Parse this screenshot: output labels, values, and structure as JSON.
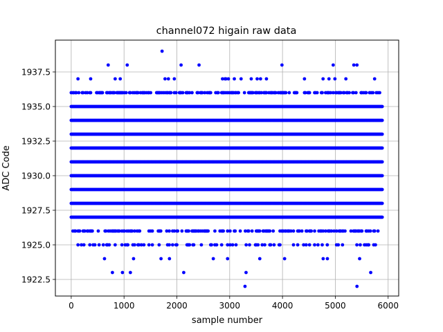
{
  "chart_data": {
    "type": "scatter",
    "title": "channel072 higain raw data",
    "xlabel": "sample number",
    "ylabel": "ADC Code",
    "xlim": [
      -300,
      6200
    ],
    "ylim": [
      1921.3,
      1939.8
    ],
    "x_ticks": [
      0,
      1000,
      2000,
      3000,
      4000,
      5000,
      6000
    ],
    "x_tick_labels": [
      "0",
      "1000",
      "2000",
      "3000",
      "4000",
      "5000",
      "6000"
    ],
    "y_ticks": [
      1922.5,
      1925.0,
      1927.5,
      1930.0,
      1932.5,
      1935.0,
      1937.5
    ],
    "y_tick_labels": [
      "1922.5",
      "1925.0",
      "1927.5",
      "1930.0",
      "1932.5",
      "1935.0",
      "1937.5"
    ],
    "grid": true,
    "marker_color": "#0000ff",
    "marker": "circle",
    "x_range": [
      0,
      5900
    ],
    "dense_levels": [
      1927,
      1928,
      1929,
      1930,
      1931,
      1932,
      1933,
      1934,
      1935
    ],
    "sparse_levels": [
      {
        "y": 1936,
        "density": 0.55
      },
      {
        "y": 1926,
        "density": 0.45
      },
      {
        "y": 1925,
        "density": 0.18
      },
      {
        "y": 1937,
        "density": 0.06
      }
    ],
    "outliers": [
      {
        "x": 1720,
        "y": 1939
      },
      {
        "x": 700,
        "y": 1938
      },
      {
        "x": 1060,
        "y": 1938
      },
      {
        "x": 2080,
        "y": 1938
      },
      {
        "x": 2420,
        "y": 1938
      },
      {
        "x": 3990,
        "y": 1938
      },
      {
        "x": 4960,
        "y": 1938
      },
      {
        "x": 5350,
        "y": 1938
      },
      {
        "x": 5410,
        "y": 1938
      },
      {
        "x": 630,
        "y": 1924
      },
      {
        "x": 1180,
        "y": 1924
      },
      {
        "x": 1700,
        "y": 1924
      },
      {
        "x": 1860,
        "y": 1924
      },
      {
        "x": 2690,
        "y": 1924
      },
      {
        "x": 2960,
        "y": 1924
      },
      {
        "x": 3570,
        "y": 1924
      },
      {
        "x": 4040,
        "y": 1924
      },
      {
        "x": 4770,
        "y": 1924
      },
      {
        "x": 4850,
        "y": 1924
      },
      {
        "x": 5460,
        "y": 1924
      },
      {
        "x": 780,
        "y": 1923
      },
      {
        "x": 970,
        "y": 1923
      },
      {
        "x": 1120,
        "y": 1923
      },
      {
        "x": 2130,
        "y": 1923
      },
      {
        "x": 3310,
        "y": 1923
      },
      {
        "x": 5670,
        "y": 1923
      },
      {
        "x": 3290,
        "y": 1922
      },
      {
        "x": 5410,
        "y": 1922
      }
    ]
  }
}
